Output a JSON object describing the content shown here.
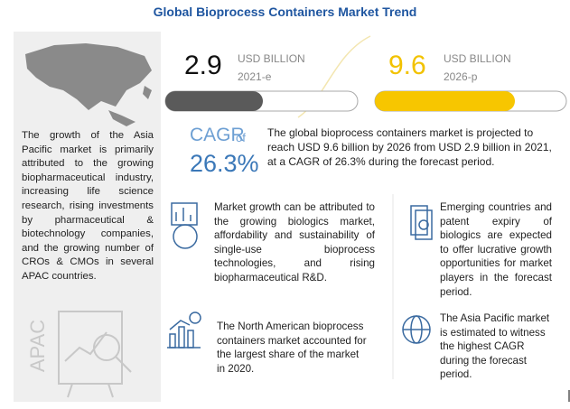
{
  "header": {
    "title": "Global Bioprocess Containers Market Trend"
  },
  "left_panel": {
    "text": "The growth of the Asia Pacific market is primarily attributed to the growing biopharmaceutical industry, increasing life science research, rising investments by pharmaceutical & biotechnology companies, and the growing number of CROs & CMOs in several APAC countries.",
    "region": "APAC"
  },
  "stats": [
    {
      "value": "2.9",
      "unit": "USD BILLION",
      "year": "2021-e"
    },
    {
      "value": "9.6",
      "unit": "USD BILLION",
      "year": "2026-p"
    }
  ],
  "cagr": {
    "label": "CAGR",
    "of": "of",
    "value": "26.3%"
  },
  "summary": "The global bioprocess containers market is projected to reach USD 9.6 billion by 2026 from USD 2.9 billion in 2021, at a CAGR of 26.3% during the forecast period.",
  "points": [
    "Market growth can be attributed to the growing biologics market, affordability and sustainability of single-use bioprocess technologies, and rising biopharmaceutical R&D.",
    "Emerging countries and patent expiry of biologics are expected to offer lucrative growth opportunities for market players in the forecast period.",
    "The North American bioprocess containers market accounted for the largest share of the market in 2020.",
    "The Asia Pacific market is estimated to witness the highest CAGR during the forecast period."
  ]
}
